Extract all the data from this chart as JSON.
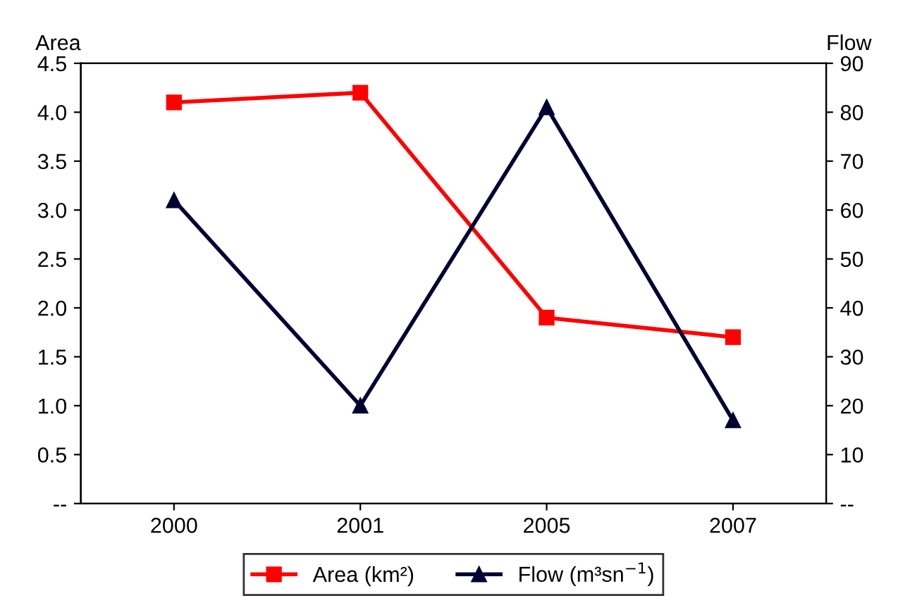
{
  "chart_data": {
    "type": "line",
    "ylabel": "Area",
    "y2label": "Flow",
    "categories": [
      "2000",
      "2001",
      "2005",
      "2007"
    ],
    "series": [
      {
        "name": "Area (km²)",
        "color": "#ff0000",
        "values": [
          4.1,
          4.2,
          1.9,
          1.7
        ],
        "marker": "square"
      },
      {
        "name": "Flow (m³sn$^{−1}$)",
        "color": "#000033",
        "values": [
          62,
          20,
          81,
          17
        ],
        "marker": "triangle",
        "axis": "y2"
      }
    ],
    "ylim": [
      0,
      4.5
    ],
    "yticks": [
      {
        "value": 0,
        "label": "--"
      },
      0.5,
      {
        "value": 1,
        "label": "1.0"
      },
      1.5,
      {
        "value": 2,
        "label": "2.0"
      },
      2.5,
      {
        "value": 3,
        "label": "3.0"
      },
      3.5,
      {
        "value": 4,
        "label": "4.0"
      },
      4.5
    ],
    "y2lim": [
      0,
      90
    ],
    "y2ticks": [
      {
        "value": 0,
        "label": "--"
      },
      10,
      20,
      30,
      40,
      50,
      60,
      70,
      80,
      90
    ],
    "legend": "bottom",
    "grid": false
  }
}
